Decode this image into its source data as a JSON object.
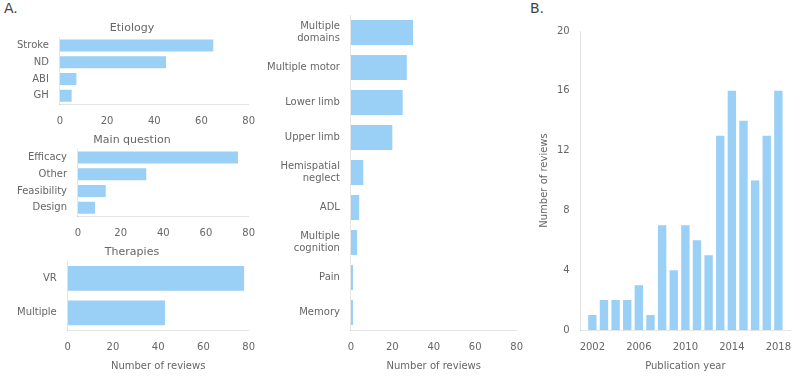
{
  "chart_data": [
    {
      "type": "bar",
      "orientation": "horizontal",
      "title": "Etiology",
      "annotations": [
        "A."
      ],
      "categories": [
        "Stroke",
        "ND",
        "ABI",
        "GH"
      ],
      "values": [
        65,
        45,
        7,
        5
      ],
      "xlim": [
        0,
        80
      ],
      "xticks": [
        0,
        20,
        40,
        60,
        80
      ],
      "grid": false
    },
    {
      "type": "bar",
      "orientation": "horizontal",
      "title": "Main question",
      "categories": [
        "Efficacy",
        "Other",
        "Feasibility",
        "Design"
      ],
      "values": [
        75,
        32,
        13,
        8
      ],
      "xlim": [
        0,
        80
      ],
      "xticks": [
        0,
        20,
        40,
        60,
        80
      ],
      "grid": false
    },
    {
      "type": "bar",
      "orientation": "horizontal",
      "title": "Therapies",
      "categories": [
        "VR",
        "Multiple"
      ],
      "values": [
        78,
        43
      ],
      "xlim": [
        0,
        80
      ],
      "xticks": [
        0,
        20,
        40,
        60,
        80
      ],
      "xlabel": "Number of reviews",
      "grid": false
    },
    {
      "type": "bar",
      "orientation": "horizontal",
      "categories": [
        "Multiple\ndomains",
        "Multiple motor",
        "Lower limb",
        "Upper limb",
        "Hemispatial\nneglect",
        "ADL",
        "Multiple\ncognition",
        "Pain",
        "Memory"
      ],
      "values": [
        30,
        27,
        25,
        20,
        6,
        4,
        3,
        1,
        1
      ],
      "xlim": [
        0,
        80
      ],
      "xticks": [
        0,
        20,
        40,
        60,
        80
      ],
      "xlabel": "Number of reviews",
      "grid": false
    },
    {
      "type": "bar",
      "annotations": [
        "B."
      ],
      "x": [
        2002,
        2003,
        2004,
        2005,
        2006,
        2007,
        2008,
        2009,
        2010,
        2011,
        2012,
        2013,
        2014,
        2015,
        2016,
        2017,
        2018
      ],
      "values": [
        1,
        2,
        2,
        2,
        3,
        1,
        7,
        4,
        7,
        6,
        5,
        13,
        16,
        14,
        10,
        13,
        16
      ],
      "xlim": [
        2001,
        2019
      ],
      "xticks": [
        2002,
        2006,
        2010,
        2014,
        2018
      ],
      "ylim": [
        0,
        20
      ],
      "yticks": [
        0,
        4,
        8,
        12,
        16,
        20
      ],
      "xlabel": "Publication year",
      "ylabel": "Number of reviews",
      "grid": false
    }
  ]
}
